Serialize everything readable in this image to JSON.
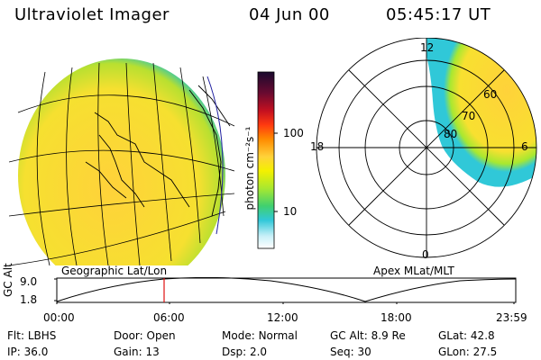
{
  "header": {
    "title": "Ultraviolet Imager",
    "date": "04 Jun 00",
    "time": "05:45:17 UT"
  },
  "colorbar": {
    "unit_label": "photon cm⁻²s⁻¹",
    "ticks": [
      "100",
      "10"
    ],
    "colors": [
      "#1a0a2e",
      "#6a0a30",
      "#c41020",
      "#ff3a10",
      "#ff8a00",
      "#ffd23a",
      "#f4f000",
      "#a8e830",
      "#40d070",
      "#30c8d8",
      "#c8f0f8",
      "#ffffff"
    ]
  },
  "map_left": {
    "caption": "Geographic Lat/Lon"
  },
  "map_right": {
    "caption": "Apex MLat/MLT",
    "mlt_labels": {
      "top": "12",
      "left": "18",
      "right": "6",
      "bottom": "0"
    },
    "lat_labels": [
      "60",
      "70",
      "80"
    ]
  },
  "altitude_plot": {
    "ylabel": "GC Alt",
    "yticks": [
      "9.0",
      "1.8"
    ],
    "xticks": [
      "00:00",
      "06:00",
      "12:00",
      "18:00",
      "23:59"
    ],
    "marker_time": "05:45"
  },
  "info": {
    "flt_label": "Flt:",
    "flt_value": "LBHS",
    "ip_label": "IP:",
    "ip_value": "36.0",
    "door_label": "Door:",
    "door_value": "Open",
    "gain_label": "Gain:",
    "gain_value": "13",
    "mode_label": "Mode:",
    "mode_value": "Normal",
    "dsp_label": "Dsp:",
    "dsp_value": "2.0",
    "gcalt_label": "GC Alt:",
    "gcalt_value": "8.9 Re",
    "seq_label": "Seq:",
    "seq_value": "30",
    "glat_label": "GLat:",
    "glat_value": "42.8",
    "glon_label": "GLon:",
    "glon_value": "27.5"
  }
}
